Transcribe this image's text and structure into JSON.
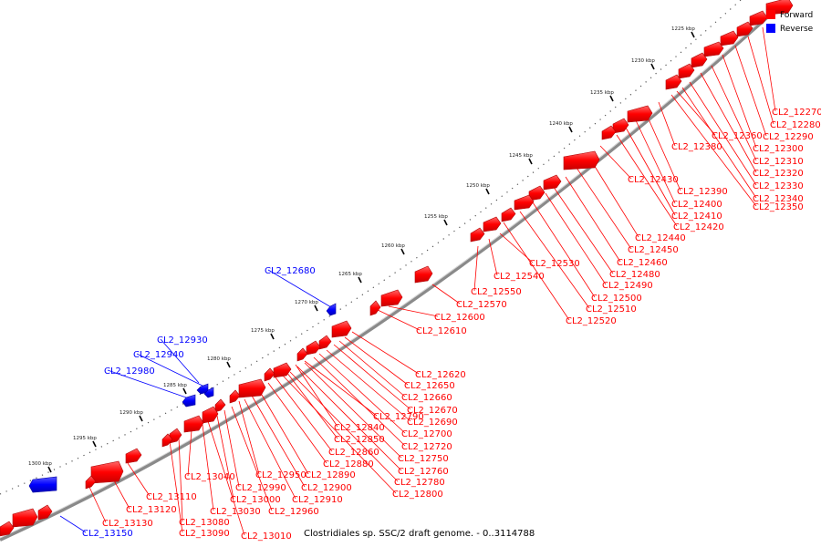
{
  "footer": "Clostridiales sp. SSC/2 draft genome. - 0..3114788",
  "legend": [
    {
      "label": "Forward",
      "color": "#ff0000"
    },
    {
      "label": "Reverse",
      "color": "#0000ff"
    }
  ],
  "ruler_ticks": [
    "1225 kbp",
    "1230 kbp",
    "1235 kbp",
    "1240 kbp",
    "1245 kbp",
    "1250 kbp",
    "1255 kbp",
    "1260 kbp",
    "1265 kbp",
    "1270 kbp",
    "1275 kbp",
    "1280 kbp",
    "1285 kbp",
    "1290 kbp",
    "1295 kbp",
    "1300 kbp"
  ],
  "genes": {
    "forward": [
      "CL2_12270",
      "CL2_12280",
      "CL2_12290",
      "CL2_12300",
      "CL2_12310",
      "CL2_12320",
      "CL2_12330",
      "CL2_12340",
      "CL2_12350",
      "CL2_12360",
      "CL2_12380",
      "CL2_12390",
      "CL2_12400",
      "CL2_12410",
      "CL2_12420",
      "CL2_12430",
      "CL2_12440",
      "CL2_12450",
      "CL2_12460",
      "CL2_12480",
      "CL2_12490",
      "CL2_12500",
      "CL2_12510",
      "CL2_12520",
      "CL2_12530",
      "CL2_12540",
      "CL2_12550",
      "CL2_12570",
      "CL2_12600",
      "CL2_12610",
      "CL2_12620",
      "CL2_12650",
      "CL2_12660",
      "CL2_12670",
      "CL2_12690",
      "CL2_12700",
      "CL2_12720",
      "CL2_12750",
      "CL2_12760",
      "CL2_12780",
      "CL2_12790",
      "CL2_12800",
      "CL2_12840",
      "CL2_12850",
      "CL2_12860",
      "CL2_12880",
      "CL2_12890",
      "CL2_12900",
      "CL2_12910",
      "CL2_12950",
      "CL2_12960",
      "CL2_12990",
      "CL2_13000",
      "CL2_13010",
      "CL2_13030",
      "CL2_13040",
      "CL2_13080",
      "CL2_13090",
      "CL2_13110",
      "CL2_13120",
      "CL2_13130"
    ],
    "reverse": [
      "CL2_12680",
      "CL2_12930",
      "CL2_12940",
      "CL2_12980",
      "CL2_13150"
    ]
  },
  "colors": {
    "forward": "#ff0000",
    "reverse": "#0000ff",
    "backbone": "#8a8a8a"
  }
}
